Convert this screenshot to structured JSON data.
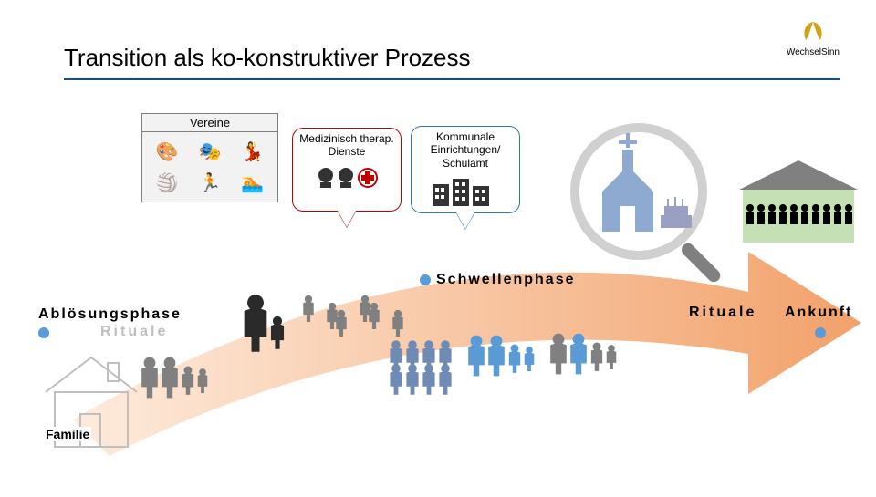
{
  "title": "Transition als ko-konstruktiver Prozess",
  "logo_text": "WechselSinn",
  "logo_color": "#d4a017",
  "title_underline_color": "#1f4e79",
  "boxes": {
    "vereine": {
      "label": "Vereine",
      "border_color": "#7f7f7f",
      "fill_color": "#f2f2f2",
      "icons": [
        "🎨",
        "🎭",
        "💃",
        "🏐",
        "🏃",
        "🏊"
      ]
    },
    "therapie": {
      "label": "Medizinisch therap. Dienste",
      "border_color": "#c00000",
      "fill_color": "#ffffff",
      "tail_color": "#c00000",
      "icons": [
        "🧠",
        "👤",
        "✚"
      ],
      "plus_color": "#c00000"
    },
    "kommunal": {
      "label": "Kommunale Einrichtungen/ Schulamt",
      "border_color": "#2e75b6",
      "fill_color": "#ffffff",
      "tail_color": "#2e75b6",
      "icons": [
        "🏢",
        "🏬"
      ]
    }
  },
  "phases": {
    "abloesung": "Ablösungsphase",
    "schwellen": "Schwellenphase",
    "rituale": "Rituale",
    "ankunft": "Ankunft",
    "dot_abloesung_color": "#5b9bd5",
    "dot_schwellen_color": "#5b9bd5",
    "dot_ankunft_color": "#5b9bd5",
    "rituale_shadow_color": "#bfbfbf"
  },
  "familie": {
    "label": "Familie",
    "house_stroke": "#bfbfbf"
  },
  "arrow": {
    "fill_start": "#fde4d0",
    "fill_end": "#ed7d31",
    "opacity": 0.72
  },
  "magnifier": {
    "ring_color": "#d0d0d0",
    "handle_color": "#808080",
    "church_color": "#8faad0",
    "cake_color": "#9aa0c3"
  },
  "school": {
    "wall_color": "#c5e0b4",
    "roof_color": "#808080",
    "people_color": "#000000"
  },
  "people": {
    "adult_color": "#2a2a2a",
    "family_blue": "#5b9bd5",
    "family_gray": "#808080",
    "crowd_color": "#6f8bb3"
  }
}
